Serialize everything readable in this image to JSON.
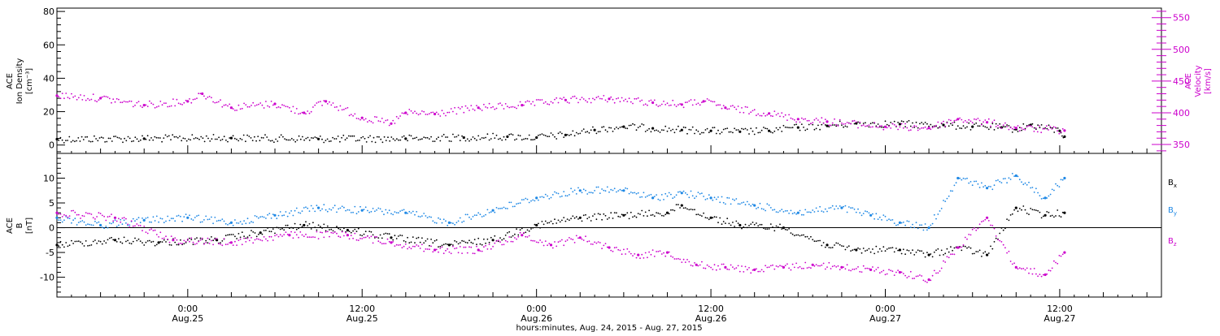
{
  "chart_data": {
    "type": "scatter",
    "x_range": [
      "2015-08-24T15:00",
      "2015-08-27T19:00"
    ],
    "x_ticks": [
      {
        "time": "2015-08-25T00:00",
        "label": "0:00",
        "sublabel": "Aug.25"
      },
      {
        "time": "2015-08-25T12:00",
        "label": "12:00",
        "sublabel": "Aug.25"
      },
      {
        "time": "2015-08-26T00:00",
        "label": "0:00",
        "sublabel": "Aug.26"
      },
      {
        "time": "2015-08-26T12:00",
        "label": "12:00",
        "sublabel": "Aug.26"
      },
      {
        "time": "2015-08-27T00:00",
        "label": "0:00",
        "sublabel": "Aug.27"
      },
      {
        "time": "2015-08-27T12:00",
        "label": "12:00",
        "sublabel": "Aug.27"
      }
    ],
    "xlabel": "hours:minutes, Aug. 24, 2015 - Aug. 27, 2015",
    "panels": [
      {
        "id": "top",
        "left_axis": {
          "label_lines": [
            "ACE",
            "Ion Density",
            "[cm⁻³]"
          ],
          "ylim": [
            -5,
            82
          ],
          "ticks": [
            0,
            20,
            40,
            60,
            80
          ],
          "color": "#000000"
        },
        "right_axis": {
          "label_lines": [
            "ACE",
            "Velocity",
            "[km/s]"
          ],
          "ylim": [
            336,
            565
          ],
          "ticks": [
            350,
            400,
            450,
            500,
            550
          ],
          "color": "#cc00cc"
        },
        "series": [
          {
            "key": "density",
            "axis": "left",
            "color": "#000000",
            "marker": "dot",
            "points": [
              [
                "2015-08-24T15:00",
                3.5
              ],
              [
                "2015-08-24T21:00",
                3.8
              ],
              [
                "2015-08-25T03:00",
                4.2
              ],
              [
                "2015-08-25T09:00",
                3.6
              ],
              [
                "2015-08-25T15:00",
                3.8
              ],
              [
                "2015-08-25T19:00",
                4.5
              ],
              [
                "2015-08-25T22:00",
                5.0
              ],
              [
                "2015-08-26T00:00",
                4.5
              ],
              [
                "2015-08-26T02:00",
                6.0
              ],
              [
                "2015-08-26T04:00",
                9.0
              ],
              [
                "2015-08-26T06:00",
                11.0
              ],
              [
                "2015-08-26T08:00",
                10.0
              ],
              [
                "2015-08-26T10:00",
                9.0
              ],
              [
                "2015-08-26T12:00",
                8.5
              ],
              [
                "2015-08-26T14:00",
                8.0
              ],
              [
                "2015-08-26T16:00",
                8.5
              ],
              [
                "2015-08-26T18:00",
                10.5
              ],
              [
                "2015-08-26T20:00",
                11.5
              ],
              [
                "2015-08-26T22:00",
                13.0
              ],
              [
                "2015-08-27T01:00",
                12.5
              ],
              [
                "2015-08-27T04:00",
                12.0
              ],
              [
                "2015-08-27T06:00",
                11.0
              ],
              [
                "2015-08-27T08:00",
                10.5
              ],
              [
                "2015-08-27T09:00",
                9.5
              ],
              [
                "2015-08-27T10:00",
                12.0
              ],
              [
                "2015-08-27T12:00",
                8.5
              ],
              [
                "2015-08-27T12:20",
                5.0
              ]
            ]
          },
          {
            "key": "velocity",
            "axis": "right",
            "color": "#cc00cc",
            "marker": "dot",
            "points": [
              [
                "2015-08-24T15:00",
                427
              ],
              [
                "2015-08-24T18:00",
                423
              ],
              [
                "2015-08-24T21:00",
                412
              ],
              [
                "2015-08-25T00:00",
                418
              ],
              [
                "2015-08-25T01:00",
                430
              ],
              [
                "2015-08-25T03:00",
                408
              ],
              [
                "2015-08-25T06:00",
                414
              ],
              [
                "2015-08-25T08:00",
                400
              ],
              [
                "2015-08-25T09:30",
                418
              ],
              [
                "2015-08-25T12:00",
                392
              ],
              [
                "2015-08-25T14:00",
                383
              ],
              [
                "2015-08-25T15:00",
                400
              ],
              [
                "2015-08-25T17:00",
                398
              ],
              [
                "2015-08-25T20:00",
                408
              ],
              [
                "2015-08-25T23:00",
                412
              ],
              [
                "2015-08-26T02:00",
                420
              ],
              [
                "2015-08-26T05:00",
                422
              ],
              [
                "2015-08-26T08:00",
                416
              ],
              [
                "2015-08-26T10:00",
                413
              ],
              [
                "2015-08-26T11:30",
                418
              ],
              [
                "2015-08-26T13:00",
                408
              ],
              [
                "2015-08-26T16:00",
                399
              ],
              [
                "2015-08-26T18:00",
                390
              ],
              [
                "2015-08-26T20:00",
                386
              ],
              [
                "2015-08-27T00:00",
                378
              ],
              [
                "2015-08-27T03:00",
                376
              ],
              [
                "2015-08-27T05:00",
                390
              ],
              [
                "2015-08-27T07:00",
                385
              ],
              [
                "2015-08-27T09:00",
                376
              ],
              [
                "2015-08-27T12:20",
                372
              ]
            ]
          }
        ]
      },
      {
        "id": "bottom",
        "left_axis": {
          "label_lines": [
            "ACE",
            "B",
            "[nT]"
          ],
          "ylim": [
            -14,
            15
          ],
          "ticks": [
            -10,
            -5,
            0,
            5,
            10
          ],
          "color": "#000000"
        },
        "zero_line": true,
        "series": [
          {
            "key": "bx",
            "legend": "Bx",
            "axis": "left",
            "color": "#000000",
            "marker": "dot",
            "points": [
              [
                "2015-08-24T15:00",
                -3.5
              ],
              [
                "2015-08-24T19:00",
                -2.5
              ],
              [
                "2015-08-24T22:00",
                -3.0
              ],
              [
                "2015-08-25T02:00",
                -2.5
              ],
              [
                "2015-08-25T05:00",
                -1.0
              ],
              [
                "2015-08-25T08:00",
                0.5
              ],
              [
                "2015-08-25T11:00",
                -0.5
              ],
              [
                "2015-08-25T14:00",
                -2.0
              ],
              [
                "2015-08-25T18:00",
                -3.5
              ],
              [
                "2015-08-25T21:00",
                -2.5
              ],
              [
                "2015-08-26T00:00",
                0.5
              ],
              [
                "2015-08-26T03:00",
                2.0
              ],
              [
                "2015-08-26T06:00",
                2.5
              ],
              [
                "2015-08-26T09:00",
                3.0
              ],
              [
                "2015-08-26T10:00",
                4.5
              ],
              [
                "2015-08-26T12:00",
                2.0
              ],
              [
                "2015-08-26T14:00",
                0.5
              ],
              [
                "2015-08-26T17:00",
                0.0
              ],
              [
                "2015-08-26T20:00",
                -3.5
              ],
              [
                "2015-08-26T22:00",
                -4.5
              ],
              [
                "2015-08-27T01:00",
                -4.5
              ],
              [
                "2015-08-27T03:00",
                -5.5
              ],
              [
                "2015-08-27T05:00",
                -4.0
              ],
              [
                "2015-08-27T07:00",
                -5.5
              ],
              [
                "2015-08-27T09:00",
                4.0
              ],
              [
                "2015-08-27T11:00",
                2.5
              ],
              [
                "2015-08-27T12:20",
                3.0
              ]
            ]
          },
          {
            "key": "by",
            "legend": "By",
            "axis": "left",
            "color": "#1e88e5",
            "marker": "dot",
            "points": [
              [
                "2015-08-24T15:00",
                2.0
              ],
              [
                "2015-08-24T18:00",
                0.5
              ],
              [
                "2015-08-24T21:00",
                1.5
              ],
              [
                "2015-08-25T00:00",
                2.0
              ],
              [
                "2015-08-25T03:00",
                1.0
              ],
              [
                "2015-08-25T06:00",
                2.5
              ],
              [
                "2015-08-25T09:00",
                4.0
              ],
              [
                "2015-08-25T12:00",
                3.5
              ],
              [
                "2015-08-25T15:00",
                3.0
              ],
              [
                "2015-08-25T18:00",
                1.0
              ],
              [
                "2015-08-25T21:00",
                3.5
              ],
              [
                "2015-08-26T00:00",
                6.0
              ],
              [
                "2015-08-26T03:00",
                7.5
              ],
              [
                "2015-08-26T06:00",
                7.5
              ],
              [
                "2015-08-26T08:00",
                6.0
              ],
              [
                "2015-08-26T10:00",
                7.0
              ],
              [
                "2015-08-26T12:00",
                6.0
              ],
              [
                "2015-08-26T15:00",
                4.5
              ],
              [
                "2015-08-26T18:00",
                3.0
              ],
              [
                "2015-08-26T21:00",
                4.0
              ],
              [
                "2015-08-26T23:00",
                2.5
              ],
              [
                "2015-08-27T01:00",
                1.0
              ],
              [
                "2015-08-27T03:00",
                0.0
              ],
              [
                "2015-08-27T05:00",
                10.0
              ],
              [
                "2015-08-27T07:00",
                8.0
              ],
              [
                "2015-08-27T09:00",
                10.5
              ],
              [
                "2015-08-27T11:00",
                6.0
              ],
              [
                "2015-08-27T12:20",
                10.0
              ]
            ]
          },
          {
            "key": "bz",
            "legend": "Bz",
            "axis": "left",
            "color": "#cc00cc",
            "marker": "dot",
            "points": [
              [
                "2015-08-24T15:00",
                3.0
              ],
              [
                "2015-08-24T19:00",
                2.0
              ],
              [
                "2015-08-24T23:00",
                -2.5
              ],
              [
                "2015-08-25T03:00",
                -3.0
              ],
              [
                "2015-08-25T07:00",
                -1.5
              ],
              [
                "2015-08-25T11:00",
                -1.5
              ],
              [
                "2015-08-25T14:00",
                -3.0
              ],
              [
                "2015-08-25T17:00",
                -4.5
              ],
              [
                "2015-08-25T20:00",
                -4.5
              ],
              [
                "2015-08-25T23:00",
                -1.5
              ],
              [
                "2015-08-26T01:00",
                -3.5
              ],
              [
                "2015-08-26T03:00",
                -2.0
              ],
              [
                "2015-08-26T05:00",
                -4.0
              ],
              [
                "2015-08-26T07:00",
                -5.5
              ],
              [
                "2015-08-26T09:00",
                -5.0
              ],
              [
                "2015-08-26T11:00",
                -7.5
              ],
              [
                "2015-08-26T13:00",
                -8.0
              ],
              [
                "2015-08-26T15:00",
                -8.5
              ],
              [
                "2015-08-26T17:00",
                -8.0
              ],
              [
                "2015-08-26T19:00",
                -7.5
              ],
              [
                "2015-08-26T21:00",
                -8.0
              ],
              [
                "2015-08-26T23:00",
                -8.5
              ],
              [
                "2015-08-27T01:00",
                -9.0
              ],
              [
                "2015-08-27T03:00",
                -10.5
              ],
              [
                "2015-08-27T05:00",
                -4.0
              ],
              [
                "2015-08-27T07:00",
                2.0
              ],
              [
                "2015-08-27T09:00",
                -8.0
              ],
              [
                "2015-08-27T11:00",
                -9.5
              ],
              [
                "2015-08-27T12:20",
                -5.0
              ]
            ]
          }
        ]
      }
    ]
  }
}
